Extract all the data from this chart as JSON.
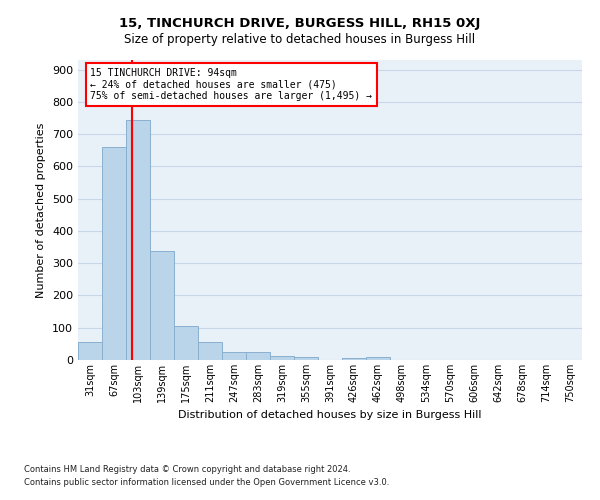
{
  "title": "15, TINCHURCH DRIVE, BURGESS HILL, RH15 0XJ",
  "subtitle": "Size of property relative to detached houses in Burgess Hill",
  "xlabel": "Distribution of detached houses by size in Burgess Hill",
  "ylabel": "Number of detached properties",
  "footnote1": "Contains HM Land Registry data © Crown copyright and database right 2024.",
  "footnote2": "Contains public sector information licensed under the Open Government Licence v3.0.",
  "bin_labels": [
    "31sqm",
    "67sqm",
    "103sqm",
    "139sqm",
    "175sqm",
    "211sqm",
    "247sqm",
    "283sqm",
    "319sqm",
    "355sqm",
    "391sqm",
    "426sqm",
    "462sqm",
    "498sqm",
    "534sqm",
    "570sqm",
    "606sqm",
    "642sqm",
    "678sqm",
    "714sqm",
    "750sqm"
  ],
  "bar_heights": [
    55,
    660,
    745,
    338,
    105,
    55,
    25,
    25,
    12,
    8,
    0,
    7,
    8,
    0,
    0,
    0,
    0,
    0,
    0,
    0,
    0
  ],
  "bar_color": "#bad4ea",
  "bar_edgecolor": "#8ab0d0",
  "grid_color": "#c8d8e8",
  "bg_color": "#e8f0f8",
  "red_line_x": 1.73,
  "annotation_text_line1": "15 TINCHURCH DRIVE: 94sqm",
  "annotation_text_line2": "← 24% of detached houses are smaller (475)",
  "annotation_text_line3": "75% of semi-detached houses are larger (1,495) →",
  "ylim": [
    0,
    930
  ],
  "yticks": [
    0,
    100,
    200,
    300,
    400,
    500,
    600,
    700,
    800,
    900
  ]
}
